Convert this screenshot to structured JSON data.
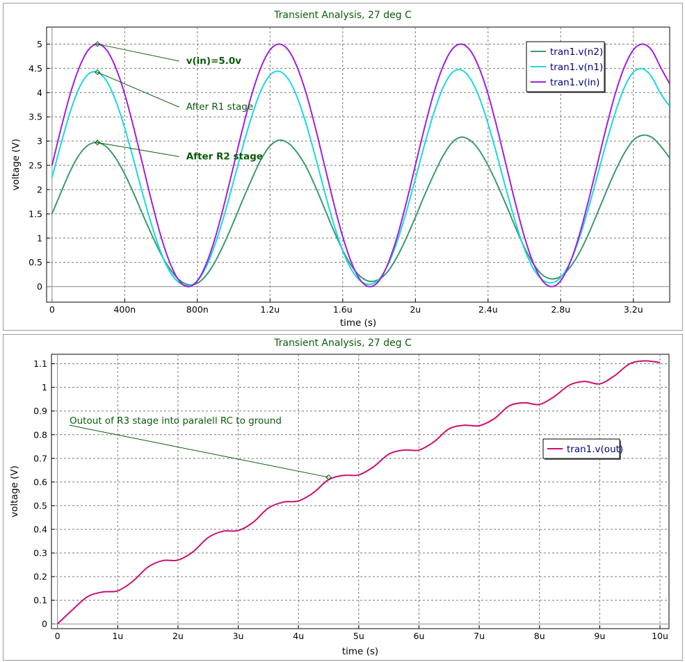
{
  "chart_data": [
    {
      "type": "line",
      "title": "Transient Analysis, 27 deg C",
      "xlabel": "time (s)",
      "ylabel": "voltage (V)",
      "xlim": [
        -0.03,
        3.4
      ],
      "ylim": [
        -0.32,
        5.35
      ],
      "x_ticks": [
        {
          "v": 0,
          "label": "0"
        },
        {
          "v": 0.4,
          "label": "400n"
        },
        {
          "v": 0.8,
          "label": "800n"
        },
        {
          "v": 1.2,
          "label": "1.2u"
        },
        {
          "v": 1.6,
          "label": "1.6u"
        },
        {
          "v": 2.0,
          "label": "2u"
        },
        {
          "v": 2.4,
          "label": "2.4u"
        },
        {
          "v": 2.8,
          "label": "2.8u"
        },
        {
          "v": 3.2,
          "label": "3.2u"
        }
      ],
      "y_ticks": [
        {
          "v": 0,
          "label": "0"
        },
        {
          "v": 0.5,
          "label": "0.5"
        },
        {
          "v": 1,
          "label": "1"
        },
        {
          "v": 1.5,
          "label": "1.5"
        },
        {
          "v": 2,
          "label": "2"
        },
        {
          "v": 2.5,
          "label": "2.5"
        },
        {
          "v": 3,
          "label": "3"
        },
        {
          "v": 3.5,
          "label": "3.5"
        },
        {
          "v": 4,
          "label": "4"
        },
        {
          "v": 4.5,
          "label": "4.5"
        },
        {
          "v": 5,
          "label": "5"
        }
      ],
      "grid": true,
      "legend_position": "top-right",
      "series": [
        {
          "name": "tran1.v(n2)",
          "color": "#3a9a6e",
          "x": [
            0,
            0.05,
            0.1,
            0.15,
            0.2,
            0.25,
            0.3,
            0.35,
            0.4,
            0.45,
            0.5,
            0.55,
            0.6,
            0.65,
            0.7,
            0.75,
            0.8,
            0.85,
            0.9,
            0.95,
            1.0,
            1.05,
            1.1,
            1.15,
            1.2,
            1.25,
            1.3,
            1.35,
            1.4,
            1.45,
            1.5,
            1.55,
            1.6,
            1.65,
            1.7,
            1.75,
            1.8,
            1.85,
            1.9,
            1.95,
            2.0,
            2.05,
            2.1,
            2.15,
            2.2,
            2.25,
            2.3,
            2.35,
            2.4,
            2.45,
            2.5,
            2.55,
            2.6,
            2.65,
            2.7,
            2.75,
            2.8,
            2.85,
            2.9,
            2.95,
            3.0,
            3.05,
            3.1,
            3.15,
            3.2,
            3.25,
            3.3,
            3.35,
            3.4
          ],
          "values": [
            1.5,
            1.95,
            2.38,
            2.72,
            2.92,
            2.97,
            2.88,
            2.65,
            2.32,
            1.92,
            1.48,
            1.06,
            0.67,
            0.36,
            0.14,
            0.04,
            0.07,
            0.24,
            0.53,
            0.91,
            1.34,
            1.79,
            2.22,
            2.62,
            2.9,
            3.02,
            2.96,
            2.76,
            2.46,
            2.06,
            1.61,
            1.16,
            0.75,
            0.42,
            0.2,
            0.11,
            0.15,
            0.32,
            0.62,
            1.0,
            1.43,
            1.88,
            2.3,
            2.68,
            2.96,
            3.08,
            3.02,
            2.82,
            2.5,
            2.11,
            1.68,
            1.23,
            0.81,
            0.47,
            0.24,
            0.16,
            0.21,
            0.39,
            0.68,
            1.06,
            1.5,
            1.95,
            2.38,
            2.75,
            3.02,
            3.12,
            3.08,
            2.9,
            2.65
          ]
        },
        {
          "name": "tran1.v(n1)",
          "color": "#16d8e4",
          "x": [
            0,
            0.05,
            0.1,
            0.15,
            0.2,
            0.25,
            0.3,
            0.35,
            0.4,
            0.45,
            0.5,
            0.55,
            0.6,
            0.65,
            0.7,
            0.75,
            0.8,
            0.85,
            0.9,
            0.95,
            1.0,
            1.05,
            1.1,
            1.15,
            1.2,
            1.25,
            1.3,
            1.35,
            1.4,
            1.45,
            1.5,
            1.55,
            1.6,
            1.65,
            1.7,
            1.75,
            1.8,
            1.85,
            1.9,
            1.95,
            2.0,
            2.05,
            2.1,
            2.15,
            2.2,
            2.25,
            2.3,
            2.35,
            2.4,
            2.45,
            2.5,
            2.55,
            2.6,
            2.65,
            2.7,
            2.75,
            2.8,
            2.85,
            2.9,
            2.95,
            3.0,
            3.05,
            3.1,
            3.15,
            3.2,
            3.25,
            3.3,
            3.35,
            3.4
          ],
          "values": [
            2.25,
            2.95,
            3.6,
            4.1,
            4.38,
            4.42,
            4.24,
            3.84,
            3.27,
            2.6,
            1.9,
            1.25,
            0.7,
            0.3,
            0.08,
            0.02,
            0.12,
            0.42,
            0.9,
            1.5,
            2.18,
            2.88,
            3.52,
            4.04,
            4.36,
            4.44,
            4.28,
            3.9,
            3.34,
            2.67,
            1.96,
            1.3,
            0.74,
            0.34,
            0.11,
            0.05,
            0.15,
            0.46,
            0.93,
            1.54,
            2.22,
            2.92,
            3.56,
            4.08,
            4.4,
            4.47,
            4.3,
            3.92,
            3.36,
            2.7,
            2.0,
            1.34,
            0.78,
            0.37,
            0.14,
            0.08,
            0.19,
            0.49,
            0.97,
            1.58,
            2.26,
            2.95,
            3.58,
            4.1,
            4.42,
            4.49,
            4.33,
            3.98,
            3.72
          ]
        },
        {
          "name": "tran1.v(in)",
          "color": "#a31ce0",
          "x": [
            0,
            0.05,
            0.1,
            0.15,
            0.2,
            0.25,
            0.3,
            0.35,
            0.4,
            0.45,
            0.5,
            0.55,
            0.6,
            0.65,
            0.7,
            0.75,
            0.8,
            0.85,
            0.9,
            0.95,
            1.0,
            1.05,
            1.1,
            1.15,
            1.2,
            1.25,
            1.3,
            1.35,
            1.4,
            1.45,
            1.5,
            1.55,
            1.6,
            1.65,
            1.7,
            1.75,
            1.8,
            1.85,
            1.9,
            1.95,
            2.0,
            2.05,
            2.1,
            2.15,
            2.2,
            2.25,
            2.3,
            2.35,
            2.4,
            2.45,
            2.5,
            2.55,
            2.6,
            2.65,
            2.7,
            2.75,
            2.8,
            2.85,
            2.9,
            2.95,
            3.0,
            3.05,
            3.1,
            3.15,
            3.2,
            3.25,
            3.3,
            3.35,
            3.4
          ],
          "values": [
            2.5,
            3.27,
            3.97,
            4.52,
            4.88,
            5.0,
            4.88,
            4.52,
            3.97,
            3.27,
            2.5,
            1.73,
            1.03,
            0.48,
            0.12,
            0.0,
            0.12,
            0.48,
            1.03,
            1.73,
            2.5,
            3.27,
            3.97,
            4.52,
            4.88,
            5.0,
            4.88,
            4.52,
            3.97,
            3.27,
            2.5,
            1.73,
            1.03,
            0.48,
            0.12,
            0.0,
            0.12,
            0.48,
            1.03,
            1.73,
            2.5,
            3.27,
            3.97,
            4.52,
            4.88,
            5.0,
            4.88,
            4.52,
            3.97,
            3.27,
            2.5,
            1.73,
            1.03,
            0.48,
            0.12,
            0.0,
            0.12,
            0.48,
            1.03,
            1.73,
            2.5,
            3.27,
            3.97,
            4.52,
            4.88,
            5.0,
            4.88,
            4.52,
            4.18
          ]
        }
      ],
      "annotations": [
        {
          "text": "v(in)=5.0v",
          "bold": true,
          "point": [
            0.25,
            5.0
          ],
          "label_at": [
            0.7,
            4.65
          ]
        },
        {
          "text": "After R1 stage",
          "bold": false,
          "point": [
            0.25,
            4.42
          ],
          "label_at": [
            0.7,
            3.7
          ]
        },
        {
          "text": "After R2 stage",
          "bold": true,
          "point": [
            0.25,
            2.97
          ],
          "label_at": [
            0.7,
            2.68
          ]
        }
      ]
    },
    {
      "type": "line",
      "title": "Transient Analysis, 27 deg C",
      "xlabel": "time (s)",
      "ylabel": "voltage (V)",
      "xlim": [
        -0.1,
        10.15
      ],
      "ylim": [
        -0.02,
        1.14
      ],
      "x_ticks": [
        {
          "v": 0,
          "label": "0"
        },
        {
          "v": 1,
          "label": "1u"
        },
        {
          "v": 2,
          "label": "2u"
        },
        {
          "v": 3,
          "label": "3u"
        },
        {
          "v": 4,
          "label": "4u"
        },
        {
          "v": 5,
          "label": "5u"
        },
        {
          "v": 6,
          "label": "6u"
        },
        {
          "v": 7,
          "label": "7u"
        },
        {
          "v": 8,
          "label": "8u"
        },
        {
          "v": 9,
          "label": "9u"
        },
        {
          "v": 10,
          "label": "10u"
        }
      ],
      "y_ticks": [
        {
          "v": 0,
          "label": "0"
        },
        {
          "v": 0.1,
          "label": "0.1"
        },
        {
          "v": 0.2,
          "label": "0.2"
        },
        {
          "v": 0.3,
          "label": "0.3"
        },
        {
          "v": 0.4,
          "label": "0.4"
        },
        {
          "v": 0.5,
          "label": "0.5"
        },
        {
          "v": 0.6,
          "label": "0.6"
        },
        {
          "v": 0.7,
          "label": "0.7"
        },
        {
          "v": 0.8,
          "label": "0.8"
        },
        {
          "v": 0.9,
          "label": "0.9"
        },
        {
          "v": 1,
          "label": "1"
        },
        {
          "v": 1.1,
          "label": "1.1"
        }
      ],
      "grid": true,
      "legend_position": "right",
      "series": [
        {
          "name": "tran1.v(out)",
          "color": "#cc1070",
          "x": [
            0,
            0.25,
            0.5,
            0.75,
            1.0,
            1.25,
            1.5,
            1.75,
            2.0,
            2.25,
            2.5,
            2.75,
            3.0,
            3.25,
            3.5,
            3.75,
            4.0,
            4.25,
            4.5,
            4.75,
            5.0,
            5.25,
            5.5,
            5.75,
            6.0,
            6.25,
            6.5,
            6.75,
            7.0,
            7.25,
            7.5,
            7.75,
            8.0,
            8.25,
            8.5,
            8.75,
            9.0,
            9.25,
            9.5,
            9.75,
            10.0
          ],
          "values": [
            0.0,
            0.06,
            0.115,
            0.135,
            0.14,
            0.18,
            0.24,
            0.268,
            0.27,
            0.305,
            0.365,
            0.392,
            0.395,
            0.43,
            0.49,
            0.515,
            0.52,
            0.555,
            0.61,
            0.628,
            0.63,
            0.665,
            0.718,
            0.735,
            0.735,
            0.77,
            0.825,
            0.84,
            0.838,
            0.868,
            0.922,
            0.935,
            0.928,
            0.962,
            1.01,
            1.025,
            1.015,
            1.05,
            1.1,
            1.112,
            1.105
          ]
        }
      ],
      "annotations": [
        {
          "text": "Outout of R3 stage into paralell RC to ground",
          "bold": false,
          "point": [
            4.5,
            0.62
          ],
          "label_at": [
            0.2,
            0.84
          ]
        }
      ]
    }
  ]
}
